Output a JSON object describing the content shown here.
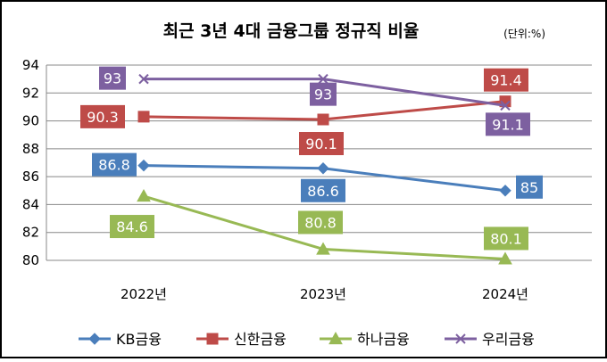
{
  "chart_data": {
    "type": "line",
    "title": "최근 3년 4대 금융그룹 정규직 비율",
    "unit_note": "(단위:%)",
    "categories": [
      "2022년",
      "2023년",
      "2024년"
    ],
    "ylim": [
      80,
      94
    ],
    "yticks": [
      "80",
      "82",
      "84",
      "86",
      "88",
      "90",
      "92",
      "94"
    ],
    "grid": true,
    "legend_position": "bottom",
    "series": [
      {
        "name": "KB금융",
        "values": [
          86.8,
          86.6,
          85
        ],
        "labels": [
          "86.8",
          "86.6",
          "85"
        ],
        "color": "#4a7ebb",
        "marker": "diamond"
      },
      {
        "name": "신한금융",
        "values": [
          90.3,
          90.1,
          91.4
        ],
        "labels": [
          "90.3",
          "90.1",
          "91.4"
        ],
        "color": "#be4b48",
        "marker": "square"
      },
      {
        "name": "하나금융",
        "values": [
          84.6,
          80.8,
          80.1
        ],
        "labels": [
          "84.6",
          "80.8",
          "80.1"
        ],
        "color": "#98b954",
        "marker": "triangle"
      },
      {
        "name": "우리금융",
        "values": [
          93,
          93,
          91.1
        ],
        "labels": [
          "93",
          "93",
          "91.1"
        ],
        "color": "#7d60a0",
        "marker": "x"
      }
    ]
  }
}
